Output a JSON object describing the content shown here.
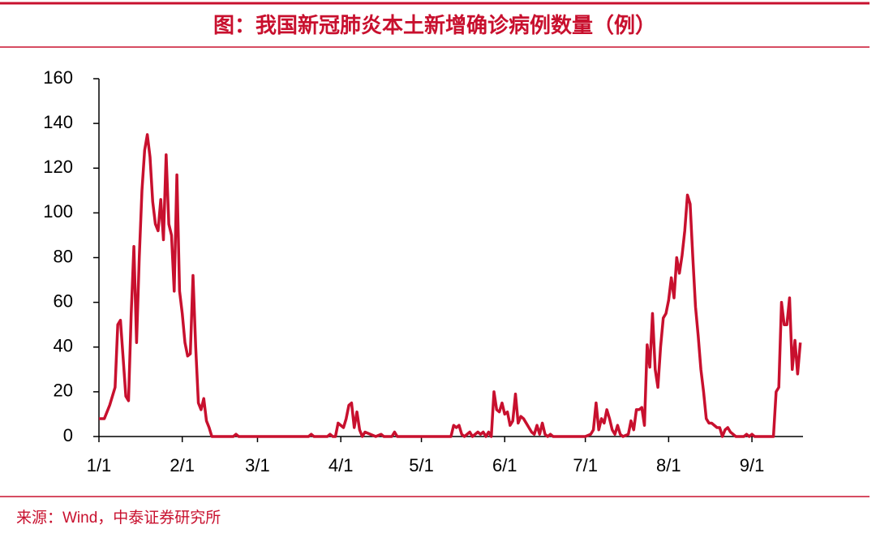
{
  "chart_data": {
    "type": "line",
    "title": "图：我国新冠肺炎本土新增确诊病例数量（例）",
    "source": "来源：Wind，中泰证券研究所",
    "color": "#c8102e",
    "x": [
      "1/1",
      "1/3",
      "1/5",
      "1/7",
      "1/8",
      "1/9",
      "1/10",
      "1/11",
      "1/12",
      "1/13",
      "1/14",
      "1/15",
      "1/16",
      "1/17",
      "1/18",
      "1/19",
      "1/20",
      "1/21",
      "1/22",
      "1/23",
      "1/24",
      "1/25",
      "1/26",
      "1/27",
      "1/28",
      "1/29",
      "1/30",
      "1/31",
      "2/1",
      "2/2",
      "2/3",
      "2/4",
      "2/5",
      "2/6",
      "2/7",
      "2/8",
      "2/9",
      "2/10",
      "2/11",
      "2/12",
      "2/20",
      "2/21",
      "2/22",
      "3/20",
      "3/21",
      "3/22",
      "3/27",
      "3/28",
      "3/29",
      "3/30",
      "3/31",
      "4/1",
      "4/2",
      "4/3",
      "4/4",
      "4/5",
      "4/6",
      "4/7",
      "4/8",
      "4/9",
      "4/10",
      "4/12",
      "4/14",
      "4/16",
      "4/17",
      "4/20",
      "4/21",
      "4/22",
      "5/12",
      "5/13",
      "5/14",
      "5/15",
      "5/16",
      "5/17",
      "5/19",
      "5/20",
      "5/22",
      "5/23",
      "5/24",
      "5/25",
      "5/26",
      "5/27",
      "5/28",
      "5/29",
      "5/30",
      "5/31",
      "6/1",
      "6/2",
      "6/3",
      "6/4",
      "6/5",
      "6/6",
      "6/7",
      "6/8",
      "6/9",
      "6/10",
      "6/11",
      "6/12",
      "6/13",
      "6/14",
      "6/15",
      "6/16",
      "6/17",
      "6/18",
      "6/19",
      "7/1",
      "7/3",
      "7/4",
      "7/5",
      "7/6",
      "7/7",
      "7/8",
      "7/9",
      "7/10",
      "7/11",
      "7/12",
      "7/13",
      "7/14",
      "7/15",
      "7/17",
      "7/18",
      "7/19",
      "7/20",
      "7/21",
      "7/22",
      "7/23",
      "7/24",
      "7/25",
      "7/26",
      "7/27",
      "7/28",
      "7/29",
      "7/30",
      "7/31",
      "8/1",
      "8/2",
      "8/3",
      "8/4",
      "8/5",
      "8/6",
      "8/7",
      "8/8",
      "8/9",
      "8/10",
      "8/11",
      "8/12",
      "8/13",
      "8/14",
      "8/15",
      "8/16",
      "8/17",
      "8/18",
      "8/19",
      "8/20",
      "8/21",
      "8/22",
      "8/23",
      "8/24",
      "8/25",
      "8/26",
      "8/29",
      "8/30",
      "8/31",
      "9/1",
      "9/2",
      "9/9",
      "9/10",
      "9/11",
      "9/12",
      "9/13",
      "9/14",
      "9/15",
      "9/16",
      "9/17",
      "9/18",
      "9/19"
    ],
    "values": [
      8,
      8,
      14,
      22,
      50,
      52,
      35,
      18,
      16,
      55,
      85,
      42,
      80,
      110,
      128,
      135,
      125,
      105,
      95,
      92,
      106,
      88,
      126,
      95,
      90,
      65,
      117,
      65,
      55,
      42,
      36,
      37,
      72,
      40,
      15,
      12,
      17,
      7,
      4,
      0,
      0,
      1,
      0,
      0,
      1,
      0,
      0,
      1,
      0,
      0,
      6,
      5,
      4,
      8,
      14,
      15,
      4,
      11,
      3,
      0,
      2,
      1,
      0,
      1,
      0,
      0,
      2,
      0,
      0,
      5,
      4,
      5,
      1,
      0,
      2,
      0,
      2,
      1,
      2,
      0,
      2,
      0,
      20,
      12,
      11,
      15,
      10,
      11,
      5,
      7,
      19,
      6,
      9,
      8,
      6,
      4,
      2,
      1,
      5,
      1,
      6,
      1,
      0,
      1,
      0,
      0,
      1,
      3,
      15,
      3,
      8,
      6,
      12,
      8,
      3,
      1,
      5,
      1,
      0,
      1,
      7,
      3,
      12,
      12,
      13,
      5,
      41,
      31,
      55,
      30,
      22,
      40,
      53,
      55,
      61,
      71,
      62,
      80,
      73,
      81,
      92,
      108,
      104,
      80,
      58,
      45,
      30,
      20,
      8,
      6,
      6,
      5,
      4,
      4,
      0,
      3,
      4,
      2,
      1,
      0,
      0,
      1,
      0,
      1,
      0,
      0,
      20,
      22,
      60,
      50,
      50,
      62,
      30,
      43,
      28,
      42
    ],
    "xlim": [
      "1/1",
      "9/20"
    ],
    "xticks": [
      "1/1",
      "2/1",
      "3/1",
      "4/1",
      "5/1",
      "6/1",
      "7/1",
      "8/1",
      "9/1"
    ],
    "ylim": [
      0,
      160
    ],
    "yticks": [
      0,
      20,
      40,
      60,
      80,
      100,
      120,
      140,
      160
    ]
  }
}
